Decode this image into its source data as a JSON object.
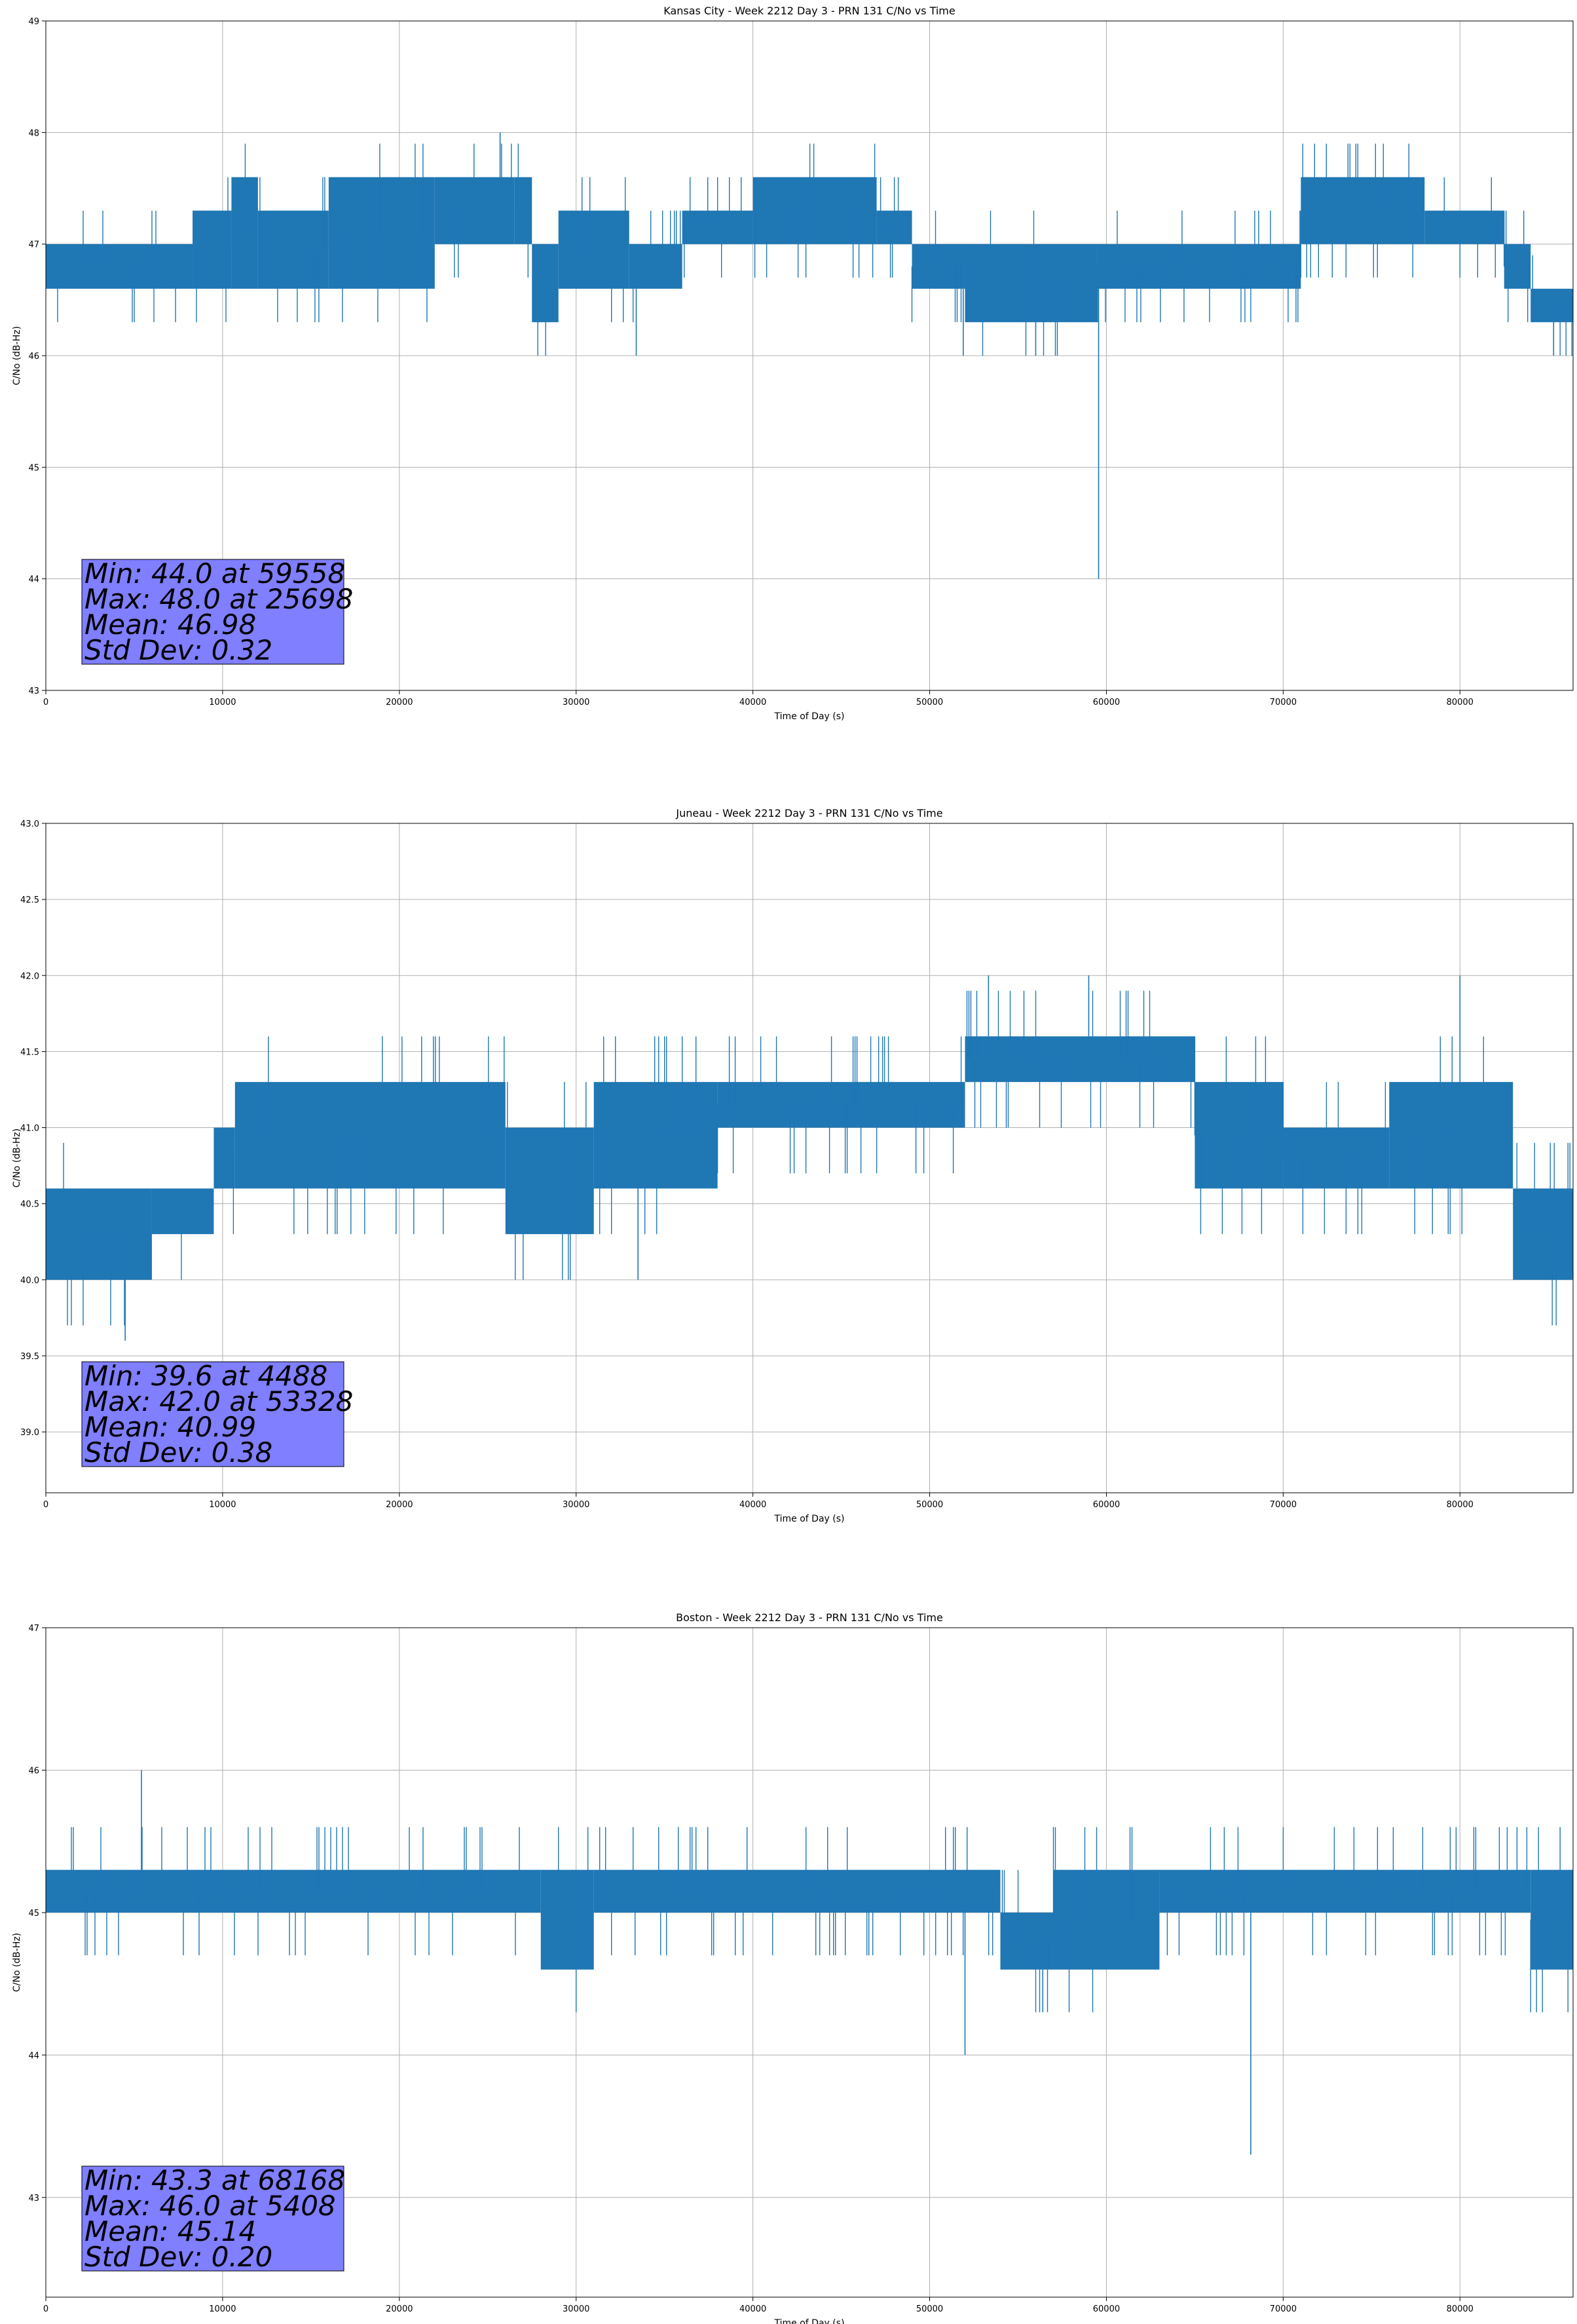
{
  "colors": {
    "series": "#1f77b4",
    "stats_box": "#7f7fff",
    "grid": "#b0b0b0"
  },
  "chart_data": [
    {
      "type": "line",
      "title": "Kansas City - Week 2212 Day 3 - PRN 131 C/No vs Time",
      "xlabel": "Time of Day (s)",
      "ylabel": "C/No (dB-Hz)",
      "xlim": [
        0,
        86400
      ],
      "ylim": [
        43,
        49
      ],
      "xticks": [
        0,
        10000,
        20000,
        30000,
        40000,
        50000,
        60000,
        70000,
        80000
      ],
      "yticks": [
        43,
        44,
        45,
        46,
        47,
        48,
        49
      ],
      "ytick_labels": [
        "43",
        "44",
        "45",
        "46",
        "47",
        "48",
        "49"
      ],
      "grid": true,
      "series_segments": [
        {
          "x0": 0,
          "x1": 8300,
          "lo": 46.6,
          "hi": 47.0
        },
        {
          "x0": 8300,
          "x1": 10500,
          "lo": 46.6,
          "hi": 47.3
        },
        {
          "x0": 10500,
          "x1": 12000,
          "lo": 46.6,
          "hi": 47.6
        },
        {
          "x0": 12000,
          "x1": 16000,
          "lo": 46.6,
          "hi": 47.3
        },
        {
          "x0": 16000,
          "x1": 22000,
          "lo": 46.6,
          "hi": 47.6
        },
        {
          "x0": 22000,
          "x1": 26500,
          "lo": 47.0,
          "hi": 47.6
        },
        {
          "x0": 26500,
          "x1": 27500,
          "lo": 47.0,
          "hi": 47.6
        },
        {
          "x0": 27500,
          "x1": 29000,
          "lo": 46.3,
          "hi": 47.0
        },
        {
          "x0": 29000,
          "x1": 33000,
          "lo": 46.6,
          "hi": 47.3
        },
        {
          "x0": 33000,
          "x1": 36000,
          "lo": 46.6,
          "hi": 47.0
        },
        {
          "x0": 36000,
          "x1": 40000,
          "lo": 47.0,
          "hi": 47.3
        },
        {
          "x0": 40000,
          "x1": 47000,
          "lo": 47.0,
          "hi": 47.6
        },
        {
          "x0": 47000,
          "x1": 49000,
          "lo": 47.0,
          "hi": 47.3
        },
        {
          "x0": 49000,
          "x1": 52000,
          "lo": 46.6,
          "hi": 47.0
        },
        {
          "x0": 52000,
          "x1": 59500,
          "lo": 46.3,
          "hi": 47.0
        },
        {
          "x0": 59500,
          "x1": 71000,
          "lo": 46.6,
          "hi": 47.0
        },
        {
          "x0": 71000,
          "x1": 78000,
          "lo": 47.0,
          "hi": 47.6
        },
        {
          "x0": 78000,
          "x1": 82500,
          "lo": 47.0,
          "hi": 47.3
        },
        {
          "x0": 82500,
          "x1": 84000,
          "lo": 46.6,
          "hi": 47.0
        },
        {
          "x0": 84000,
          "x1": 86400,
          "lo": 46.3,
          "hi": 46.6
        }
      ],
      "spikes": [
        {
          "x": 25698,
          "y": 48.0
        },
        {
          "x": 59558,
          "y": 44.0
        },
        {
          "x": 33400,
          "y": 46.0
        },
        {
          "x": 51900,
          "y": 46.0
        },
        {
          "x": 56000,
          "y": 46.0
        },
        {
          "x": 85300,
          "y": 46.0
        }
      ],
      "stats": [
        "Min: 44.0 at 59558",
        "Max: 48.0 at 25698",
        "Mean: 46.98",
        "Std Dev: 0.32"
      ]
    },
    {
      "type": "line",
      "title": "Juneau - Week 2212 Day 3 - PRN 131 C/No vs Time",
      "xlabel": "Time of Day (s)",
      "ylabel": "C/No (dB-Hz)",
      "xlim": [
        0,
        86400
      ],
      "ylim": [
        38.6,
        43.0
      ],
      "xticks": [
        0,
        10000,
        20000,
        30000,
        40000,
        50000,
        60000,
        70000,
        80000
      ],
      "yticks": [
        39.0,
        39.5,
        40.0,
        40.5,
        41.0,
        41.5,
        42.0,
        42.5,
        43.0
      ],
      "ytick_labels": [
        "39.0",
        "39.5",
        "40.0",
        "40.5",
        "41.0",
        "41.5",
        "42.0",
        "42.5",
        "43.0"
      ],
      "grid": true,
      "series_segments": [
        {
          "x0": 0,
          "x1": 6000,
          "lo": 40.0,
          "hi": 40.6
        },
        {
          "x0": 6000,
          "x1": 9500,
          "lo": 40.3,
          "hi": 40.6
        },
        {
          "x0": 9500,
          "x1": 10700,
          "lo": 40.6,
          "hi": 41.0
        },
        {
          "x0": 10700,
          "x1": 26000,
          "lo": 40.6,
          "hi": 41.3
        },
        {
          "x0": 26000,
          "x1": 31000,
          "lo": 40.3,
          "hi": 41.0
        },
        {
          "x0": 31000,
          "x1": 38000,
          "lo": 40.6,
          "hi": 41.3
        },
        {
          "x0": 38000,
          "x1": 52000,
          "lo": 41.0,
          "hi": 41.3
        },
        {
          "x0": 52000,
          "x1": 65000,
          "lo": 41.3,
          "hi": 41.6
        },
        {
          "x0": 65000,
          "x1": 70000,
          "lo": 40.6,
          "hi": 41.3
        },
        {
          "x0": 70000,
          "x1": 76000,
          "lo": 40.6,
          "hi": 41.0
        },
        {
          "x0": 76000,
          "x1": 83000,
          "lo": 40.6,
          "hi": 41.3
        },
        {
          "x0": 83000,
          "x1": 86400,
          "lo": 40.0,
          "hi": 40.6
        }
      ],
      "spikes": [
        {
          "x": 4488,
          "y": 39.6
        },
        {
          "x": 53328,
          "y": 42.0
        },
        {
          "x": 33500,
          "y": 40.0
        },
        {
          "x": 80000,
          "y": 42.0
        },
        {
          "x": 59000,
          "y": 42.0
        }
      ],
      "stats": [
        "Min: 39.6 at 4488",
        "Max: 42.0 at 53328",
        "Mean: 40.99",
        "Std Dev: 0.38"
      ]
    },
    {
      "type": "line",
      "title": "Boston - Week 2212 Day 3 - PRN 131 C/No vs Time",
      "xlabel": "Time of Day (s)",
      "ylabel": "C/No (dB-Hz)",
      "xlim": [
        0,
        86400
      ],
      "ylim": [
        42.3,
        47
      ],
      "xticks": [
        0,
        10000,
        20000,
        30000,
        40000,
        50000,
        60000,
        70000,
        80000
      ],
      "yticks": [
        43,
        44,
        45,
        46,
        47
      ],
      "ytick_labels": [
        "43",
        "44",
        "45",
        "46",
        "47"
      ],
      "grid": true,
      "series_segments": [
        {
          "x0": 0,
          "x1": 28000,
          "lo": 45.0,
          "hi": 45.3
        },
        {
          "x0": 28000,
          "x1": 31000,
          "lo": 44.6,
          "hi": 45.3
        },
        {
          "x0": 31000,
          "x1": 54000,
          "lo": 45.0,
          "hi": 45.3
        },
        {
          "x0": 54000,
          "x1": 57000,
          "lo": 44.6,
          "hi": 45.0
        },
        {
          "x0": 57000,
          "x1": 63000,
          "lo": 44.6,
          "hi": 45.3
        },
        {
          "x0": 63000,
          "x1": 84000,
          "lo": 45.0,
          "hi": 45.3
        },
        {
          "x0": 84000,
          "x1": 86400,
          "lo": 44.6,
          "hi": 45.3
        }
      ],
      "spikes": [
        {
          "x": 68168,
          "y": 43.3
        },
        {
          "x": 5408,
          "y": 46.0
        },
        {
          "x": 52000,
          "y": 44.0
        },
        {
          "x": 56400,
          "y": 44.3
        }
      ],
      "stats": [
        "Min: 43.3 at 68168",
        "Max: 46.0 at 5408",
        "Mean: 45.14",
        "Std Dev: 0.20"
      ]
    }
  ]
}
